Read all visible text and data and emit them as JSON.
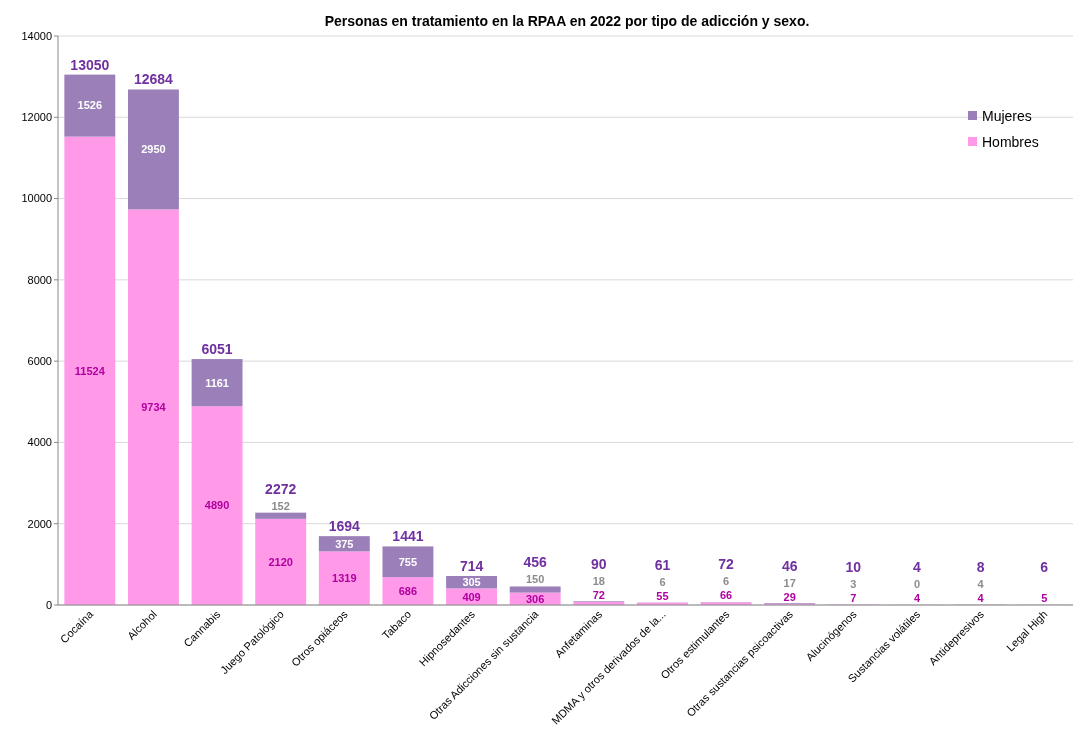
{
  "chart_data": {
    "type": "bar",
    "stacked": true,
    "title": "Personas en tratamiento en la RPAA en 2022 por tipo de adicción y sexo.",
    "categories": [
      "Cocaína",
      "Alcohol",
      "Cannabis",
      "Juego Patológico",
      "Otros opiáceos",
      "Tabaco",
      "Hipnosedantes",
      "Otras Adicciones sin sustancia",
      "Anfetaminas",
      "MDMA y otros derivados de la...",
      "Otros estimulantes",
      "Otras sustancias psicoactivas",
      "Alucinógenos",
      "Sustancias volátiles",
      "Antidepresivos",
      "Legal High"
    ],
    "series": [
      {
        "name": "Hombres",
        "color": "#ff99e8",
        "values": [
          11524,
          9734,
          4890,
          2120,
          1319,
          686,
          409,
          306,
          72,
          55,
          66,
          29,
          7,
          4,
          4,
          5
        ],
        "value_labels": [
          "11524",
          "9734",
          "4890",
          "2120",
          "1319",
          "686",
          "409",
          "306",
          "72",
          "55",
          "66",
          "29",
          "7",
          "4",
          "4",
          "5"
        ]
      },
      {
        "name": "Mujeres",
        "color": "#9a7fb8",
        "values": [
          1526,
          2950,
          1161,
          152,
          375,
          755,
          305,
          150,
          18,
          6,
          6,
          17,
          3,
          0,
          4,
          1
        ],
        "value_labels": [
          "1526",
          "2950",
          "1161",
          "152",
          "375",
          "755",
          "305",
          "150",
          "18",
          "6",
          "6",
          "17",
          "3",
          "0",
          "4",
          null
        ]
      }
    ],
    "totals": [
      "13050",
      "12684",
      "6051",
      "2272",
      "1694",
      "1441",
      "714",
      "456",
      "90",
      "61",
      "72",
      "46",
      "10",
      "4",
      "8",
      "6"
    ],
    "ylim": [
      0,
      14000
    ],
    "yticks": [
      0,
      2000,
      4000,
      6000,
      8000,
      10000,
      12000,
      14000
    ],
    "grid": "y",
    "legend": "top right"
  }
}
